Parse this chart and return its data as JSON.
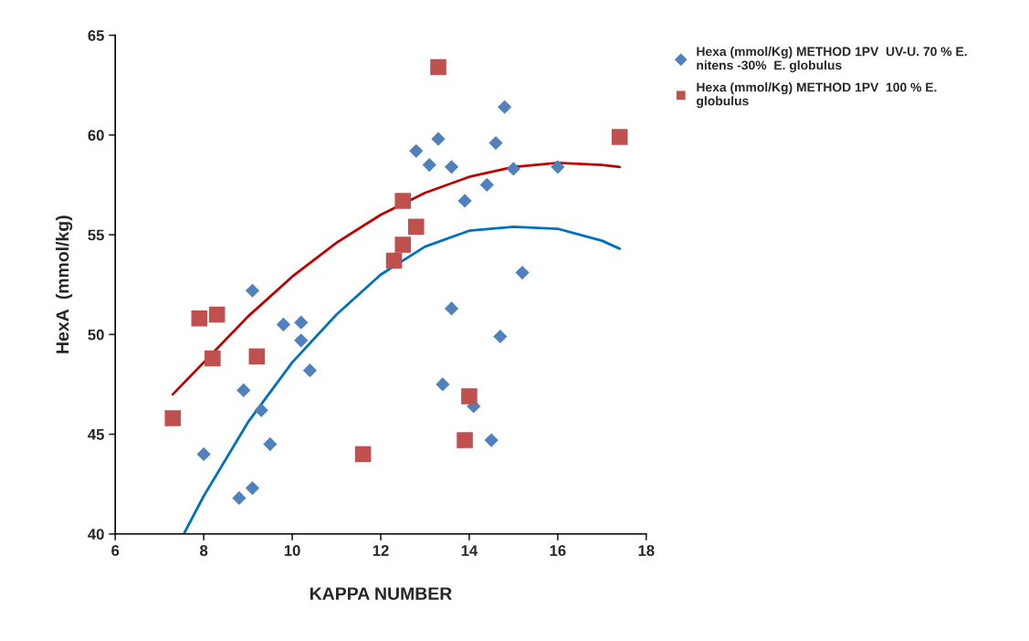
{
  "chart_data": {
    "type": "scatter",
    "xlabel": "KAPPA NUMBER",
    "ylabel": "HexA  (mmol/kg)",
    "xlim": [
      6,
      18
    ],
    "xticks": [
      6,
      8,
      10,
      12,
      14,
      16,
      18
    ],
    "ylim": [
      40,
      65
    ],
    "yticks": [
      40,
      45,
      50,
      55,
      60,
      65
    ],
    "grid": false,
    "legend": "top right",
    "series": [
      {
        "name": "Hexa (mmol/Kg) METHOD 1PV  UV-U. 70 % E.\nnitens -30%  E. globulus",
        "color": "#4f81bd",
        "marker": "diamond",
        "x": [
          8.0,
          9.1,
          8.9,
          9.3,
          9.5,
          8.8,
          9.1,
          9.8,
          10.2,
          10.2,
          10.4,
          12.8,
          13.1,
          13.3,
          13.6,
          13.9,
          13.6,
          13.4,
          14.1,
          14.5,
          14.7,
          14.4,
          14.6,
          14.8,
          15.0,
          15.2,
          16.0
        ],
        "values": [
          44.0,
          52.2,
          47.2,
          46.2,
          44.5,
          41.8,
          42.3,
          50.5,
          50.6,
          49.7,
          48.2,
          59.2,
          58.5,
          59.8,
          58.4,
          56.7,
          51.3,
          47.5,
          46.4,
          44.7,
          49.9,
          57.5,
          59.6,
          61.4,
          58.3,
          53.1,
          58.4
        ]
      },
      {
        "name": "Hexa (mmol/Kg) METHOD 1PV  100 % E.\nglobulus",
        "color": "#c0504d",
        "marker": "square",
        "x": [
          7.3,
          7.9,
          8.3,
          8.2,
          9.2,
          11.6,
          12.3,
          12.5,
          12.5,
          12.8,
          13.3,
          14.0,
          13.9,
          17.4
        ],
        "values": [
          45.8,
          50.8,
          51.0,
          48.8,
          48.9,
          44.0,
          53.7,
          56.7,
          54.5,
          55.4,
          63.4,
          46.9,
          44.7,
          59.9
        ]
      },
      {
        "type": "line",
        "color": "#0070c0",
        "x": [
          7.55,
          8,
          9,
          10,
          11,
          12,
          13,
          14,
          15,
          16,
          17,
          17.4
        ],
        "values": [
          40.0,
          41.9,
          45.6,
          48.6,
          51.0,
          53.0,
          54.4,
          55.2,
          55.4,
          55.3,
          54.7,
          54.3
        ]
      },
      {
        "type": "line",
        "color": "#c00000",
        "x": [
          7.3,
          8,
          9,
          10,
          11,
          12,
          13,
          14,
          15,
          16,
          17,
          17.4
        ],
        "values": [
          47.0,
          48.6,
          50.9,
          52.9,
          54.6,
          56.0,
          57.1,
          57.9,
          58.4,
          58.6,
          58.5,
          58.4
        ]
      }
    ]
  }
}
